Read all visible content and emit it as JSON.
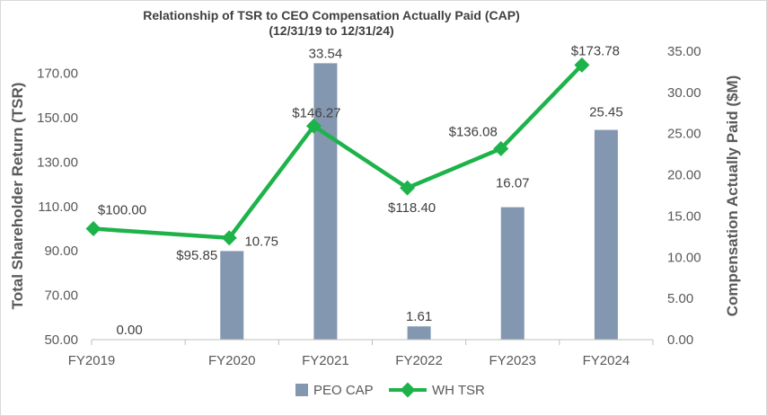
{
  "chart_data": {
    "type": "bar+line",
    "title": "Relationship of TSR to CEO Compensation Actually Paid (CAP)",
    "subtitle": "(12/31/19 to 12/31/24)",
    "categories": [
      "FY2019",
      "FY2020",
      "FY2021",
      "FY2022",
      "FY2023",
      "FY2024"
    ],
    "series": [
      {
        "name": "PEO CAP",
        "type": "bar",
        "axis": "right",
        "values": [
          0.0,
          10.75,
          33.54,
          1.61,
          16.07,
          25.45
        ],
        "labels": [
          "0.00",
          "10.75",
          "33.54",
          "1.61",
          "16.07",
          "25.45"
        ],
        "color": "#8497b0"
      },
      {
        "name": "WH TSR",
        "type": "line",
        "axis": "left",
        "values": [
          100.0,
          95.85,
          146.27,
          118.4,
          136.08,
          173.78
        ],
        "labels": [
          "$100.00",
          "$95.85",
          "$146.27",
          "$118.40",
          "$136.08",
          "$173.78"
        ],
        "color": "#1db34a"
      }
    ],
    "ylabel_left": "Total Shareholder Return (TSR)",
    "ylabel_right": "Compensation Actually Paid ($M)",
    "ylim_left": [
      50,
      180
    ],
    "yticks_left": [
      "50.00",
      "70.00",
      "90.00",
      "110.00",
      "130.00",
      "150.00",
      "170.00"
    ],
    "ylim_right": [
      0,
      35
    ],
    "yticks_right": [
      "0.00",
      "5.00",
      "10.00",
      "15.00",
      "20.00",
      "25.00",
      "30.00",
      "35.00"
    ],
    "legend": [
      "PEO CAP",
      "WH TSR"
    ],
    "legend_position": "bottom",
    "grid": false
  }
}
